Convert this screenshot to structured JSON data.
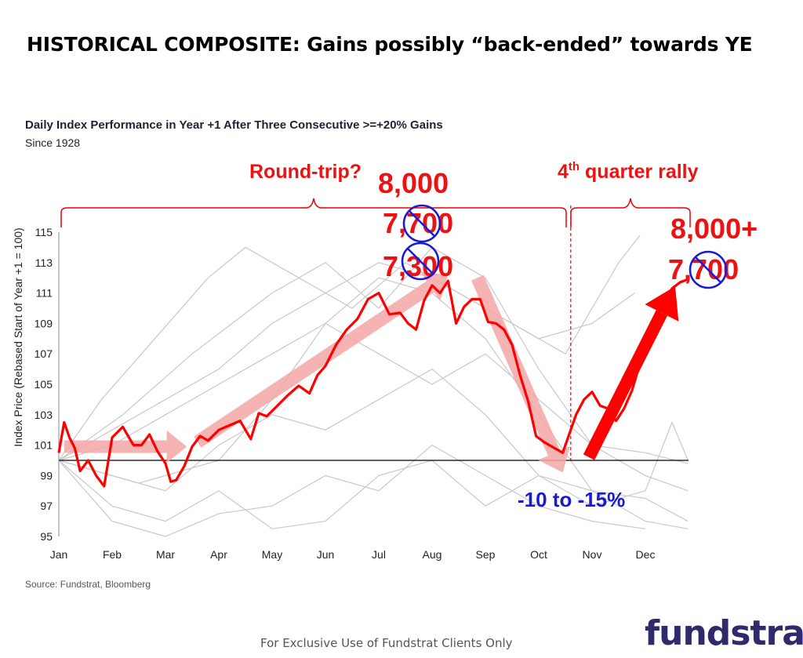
{
  "headline": "HISTORICAL COMPOSITE: Gains possibly “back-ended” towards YE",
  "chart_data": {
    "type": "line",
    "title": "Daily Index Performance in Year +1 After Three Consecutive >=+20% Gains",
    "subtitle": "Since 1928",
    "ylabel": "Index Price (Rebased Start of Year +1 = 100)",
    "xlabel": "",
    "ylim": [
      95,
      115
    ],
    "y_ticks": [
      95,
      97,
      99,
      101,
      103,
      105,
      107,
      109,
      111,
      113,
      115
    ],
    "x_ticks": [
      "Jan",
      "Feb",
      "Mar",
      "Apr",
      "May",
      "Jun",
      "Jul",
      "Aug",
      "Sep",
      "Oct",
      "Nov",
      "Dec"
    ],
    "baseline": 100,
    "series": [
      {
        "color": "#ff0000",
        "x": [
          0,
          0.1,
          0.2,
          0.3,
          0.4,
          0.55,
          0.7,
          0.85,
          1.0,
          1.2,
          1.4,
          1.55,
          1.7,
          1.85,
          2.0,
          2.1,
          2.2,
          2.35,
          2.5,
          2.65,
          2.8,
          3.0,
          3.2,
          3.4,
          3.6,
          3.75,
          3.9,
          4.1,
          4.3,
          4.5,
          4.7,
          4.85,
          5.0,
          5.2,
          5.4,
          5.6,
          5.8,
          6.0,
          6.2,
          6.4,
          6.55,
          6.7,
          6.85,
          7.0,
          7.15,
          7.3,
          7.45,
          7.6,
          7.75,
          7.9,
          8.05,
          8.2,
          8.35,
          8.5,
          8.65,
          8.8,
          8.95,
          9.1,
          9.2,
          9.3,
          9.45,
          9.55,
          9.7,
          9.85,
          10.0,
          10.15,
          10.3,
          10.45,
          10.6,
          10.75,
          10.9,
          11.05,
          11.2,
          11.35,
          11.5,
          11.65,
          11.8
        ],
        "y": [
          100.5,
          102.5,
          101.5,
          100.8,
          99.3,
          100.0,
          99.0,
          98.3,
          101.5,
          102.2,
          101.0,
          101.0,
          101.7,
          100.6,
          99.8,
          98.6,
          98.7,
          99.6,
          100.9,
          101.6,
          101.3,
          102.0,
          102.3,
          102.6,
          101.4,
          103.1,
          102.9,
          103.6,
          104.3,
          104.9,
          104.4,
          105.6,
          106.2,
          107.6,
          108.6,
          109.3,
          110.6,
          111.0,
          109.6,
          109.7,
          109.0,
          108.6,
          110.5,
          111.5,
          111.0,
          111.8,
          109.0,
          110.1,
          110.6,
          110.6,
          109.1,
          109.0,
          108.6,
          107.6,
          105.6,
          103.9,
          101.6,
          101.2,
          101.0,
          100.8,
          100.5,
          101.5,
          103.0,
          104.0,
          104.5,
          103.6,
          103.4,
          102.6,
          103.4,
          104.6,
          106.4,
          107.9,
          109.4,
          110.4,
          111.3,
          111.7,
          111.9
        ]
      }
    ],
    "gray_lines": [
      [
        [
          0,
          100
        ],
        [
          1.5,
          98.5
        ],
        [
          3,
          100
        ],
        [
          4,
          104
        ],
        [
          5,
          109
        ],
        [
          6,
          112
        ],
        [
          7,
          111
        ],
        [
          8,
          108
        ],
        [
          9,
          103
        ],
        [
          10,
          98
        ],
        [
          11,
          96
        ],
        [
          11.8,
          95.5
        ]
      ],
      [
        [
          0,
          100
        ],
        [
          1.2,
          103
        ],
        [
          2.5,
          107
        ],
        [
          4,
          111
        ],
        [
          5,
          113
        ],
        [
          6,
          110
        ],
        [
          7,
          114
        ],
        [
          8,
          112
        ],
        [
          9,
          106
        ],
        [
          10,
          101
        ],
        [
          11,
          99
        ],
        [
          11.8,
          98
        ]
      ],
      [
        [
          0,
          100
        ],
        [
          1,
          96
        ],
        [
          2,
          95
        ],
        [
          3,
          96.5
        ],
        [
          4,
          97
        ],
        [
          5,
          99
        ],
        [
          6,
          98
        ],
        [
          7,
          101
        ],
        [
          8,
          99
        ],
        [
          9,
          97
        ],
        [
          10,
          96
        ],
        [
          11,
          95.5
        ]
      ],
      [
        [
          0,
          100
        ],
        [
          1,
          102
        ],
        [
          2,
          104
        ],
        [
          3,
          106
        ],
        [
          4,
          109
        ],
        [
          5,
          111
        ],
        [
          6,
          113
        ],
        [
          7,
          112
        ],
        [
          8,
          110
        ],
        [
          9,
          108
        ],
        [
          10,
          109
        ],
        [
          10.8,
          111
        ]
      ],
      [
        [
          0,
          100
        ],
        [
          1,
          99
        ],
        [
          2,
          98
        ],
        [
          3,
          101
        ],
        [
          4,
          103
        ],
        [
          5,
          102
        ],
        [
          6,
          104
        ],
        [
          7,
          106
        ],
        [
          8,
          103
        ],
        [
          9,
          99
        ],
        [
          10,
          98
        ],
        [
          11,
          97.5
        ],
        [
          11.8,
          96
        ]
      ],
      [
        [
          0,
          100
        ],
        [
          0.8,
          104
        ],
        [
          1.8,
          108
        ],
        [
          2.8,
          112
        ],
        [
          3.5,
          114
        ],
        [
          4.5,
          112
        ],
        [
          5.5,
          110
        ],
        [
          6.5,
          113
        ],
        [
          7.5,
          111
        ],
        [
          8.5,
          109
        ],
        [
          9.5,
          107
        ],
        [
          10.5,
          113
        ],
        [
          10.9,
          114.8
        ]
      ],
      [
        [
          0,
          100
        ],
        [
          1,
          97
        ],
        [
          2,
          96
        ],
        [
          3,
          98
        ],
        [
          4,
          95.5
        ],
        [
          5,
          96
        ],
        [
          6,
          99
        ],
        [
          7,
          100
        ],
        [
          8,
          97
        ],
        [
          9,
          99
        ],
        [
          10,
          97
        ],
        [
          11,
          98
        ],
        [
          11.5,
          102.5
        ],
        [
          11.8,
          100
        ]
      ],
      [
        [
          0,
          100
        ],
        [
          1,
          101
        ],
        [
          2,
          103
        ],
        [
          3,
          105
        ],
        [
          4,
          107
        ],
        [
          5,
          109
        ],
        [
          6,
          107
        ],
        [
          7,
          105
        ],
        [
          8,
          107
        ],
        [
          9,
          104
        ],
        [
          10,
          101
        ],
        [
          11,
          100.5
        ],
        [
          11.8,
          99.8
        ]
      ]
    ],
    "annotations": {
      "round_trip": "Round-trip?",
      "q4_pre": "4",
      "q4_sup": "th",
      "q4_post": " quarter rally",
      "summer_target_new": "8,000",
      "summer_target_old1": "7,700",
      "summer_target_old2": "7,300",
      "ye_target_new": "8,000+",
      "ye_target_old": "7,700",
      "drawdown": "-10 to -15%"
    }
  },
  "source": "Source: Fundstrat, Bloomberg",
  "footer": "For Exclusive Use of Fundstrat Clients Only",
  "brand": "fundstrat",
  "colors": {
    "main_line": "#ff0000",
    "gray_line": "#c8c8c8",
    "arrow_light": "#f4a6a6",
    "arrow_strong": "#ff0000",
    "annotation_red": "#ee1111",
    "annotation_blue": "#1a1ad0",
    "brand": "#2e2a6b"
  }
}
